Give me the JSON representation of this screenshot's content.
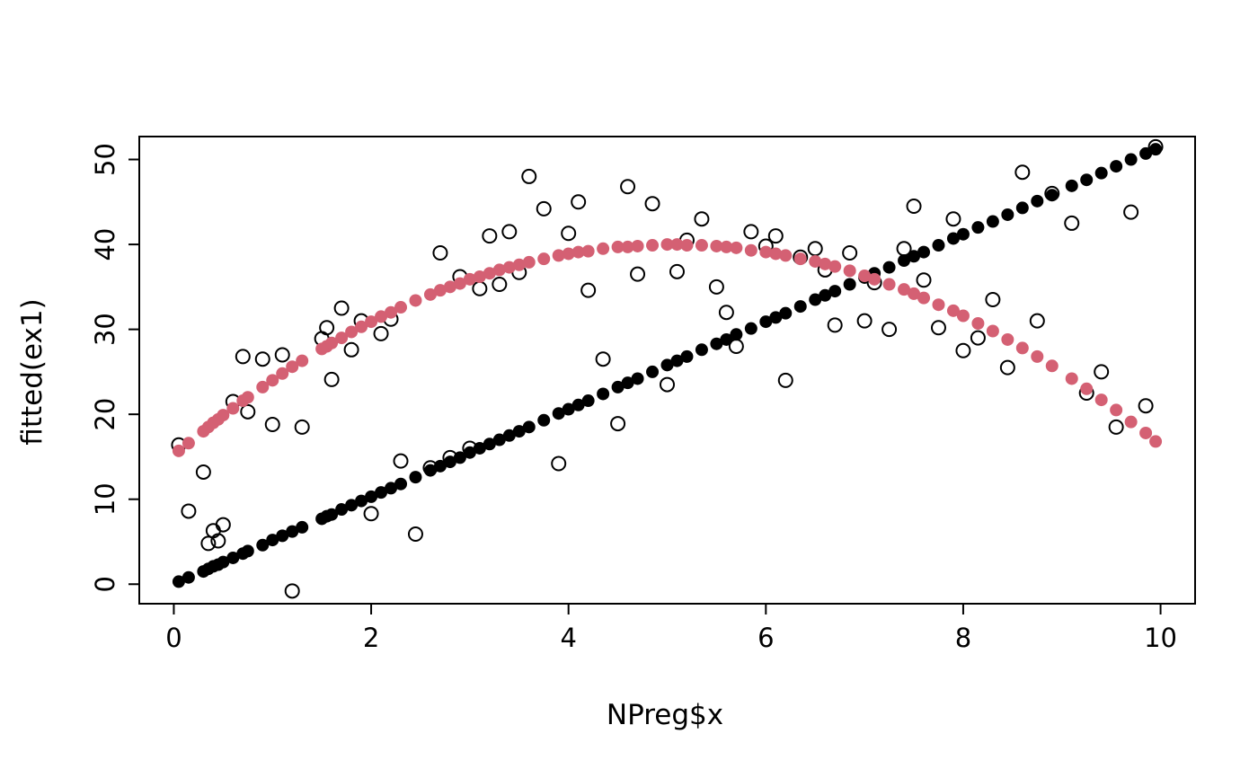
{
  "colors": {
    "background": "#ffffff",
    "foreground": "#000000",
    "accent_pink": "#d46073"
  },
  "chart_data": {
    "type": "scatter",
    "title": "",
    "xlabel": "NPreg$x",
    "ylabel": "fitted(ex1)",
    "xlim": [
      -0.35,
      10.35
    ],
    "ylim": [
      -2.3,
      52.7
    ],
    "x_ticks": [
      0,
      2,
      4,
      6,
      8,
      10
    ],
    "y_ticks": [
      0,
      10,
      20,
      30,
      40,
      50
    ],
    "grid": false,
    "legend": "none",
    "x": [
      0.05,
      0.15,
      0.3,
      0.35,
      0.4,
      0.45,
      0.5,
      0.6,
      0.7,
      0.75,
      0.9,
      1.0,
      1.1,
      1.2,
      1.3,
      1.5,
      1.55,
      1.6,
      1.7,
      1.8,
      1.9,
      2.0,
      2.1,
      2.2,
      2.3,
      2.45,
      2.6,
      2.7,
      2.8,
      2.9,
      3.0,
      3.1,
      3.2,
      3.3,
      3.4,
      3.5,
      3.6,
      3.75,
      3.9,
      4.0,
      4.1,
      4.2,
      4.35,
      4.5,
      4.6,
      4.7,
      4.85,
      5.0,
      5.1,
      5.2,
      5.35,
      5.5,
      5.6,
      5.7,
      5.85,
      6.0,
      6.1,
      6.2,
      6.35,
      6.5,
      6.6,
      6.7,
      6.85,
      7.0,
      7.1,
      7.25,
      7.4,
      7.5,
      7.6,
      7.75,
      7.9,
      8.0,
      8.15,
      8.3,
      8.45,
      8.6,
      8.75,
      8.9,
      9.1,
      9.25,
      9.4,
      9.55,
      9.7,
      9.85,
      9.95
    ],
    "series": [
      {
        "name": "observed",
        "marker": "open-circle",
        "color": "#000000",
        "values": [
          16.4,
          8.6,
          13.2,
          4.8,
          6.3,
          5.1,
          7.0,
          21.5,
          26.8,
          20.3,
          26.5,
          18.8,
          27.0,
          -0.8,
          18.5,
          28.9,
          30.2,
          24.1,
          32.5,
          27.6,
          31.0,
          8.3,
          29.5,
          31.2,
          14.5,
          5.9,
          13.7,
          39.0,
          14.9,
          36.2,
          16.0,
          34.8,
          41.0,
          35.3,
          41.5,
          36.7,
          48.0,
          44.2,
          14.2,
          41.3,
          45.0,
          34.6,
          26.5,
          18.9,
          46.8,
          36.5,
          44.8,
          23.5,
          36.8,
          40.5,
          43.0,
          35.0,
          32.0,
          28.0,
          41.5,
          39.8,
          41.0,
          24.0,
          38.5,
          39.5,
          37.0,
          30.5,
          39.0,
          31.0,
          35.5,
          30.0,
          39.5,
          44.5,
          35.8,
          30.2,
          43.0,
          27.5,
          29.0,
          33.5,
          25.5,
          48.5,
          31.0,
          46.0,
          42.5,
          22.5,
          25.0,
          18.5,
          43.8,
          21.0,
          51.5
        ]
      },
      {
        "name": "fitted-linear-ex1",
        "marker": "filled-circle",
        "color": "#000000",
        "values": [
          0.3,
          0.8,
          1.5,
          1.8,
          2.1,
          2.3,
          2.6,
          3.1,
          3.6,
          3.9,
          4.6,
          5.2,
          5.7,
          6.2,
          6.7,
          7.7,
          8.0,
          8.2,
          8.8,
          9.3,
          9.8,
          10.3,
          10.8,
          11.3,
          11.8,
          12.6,
          13.4,
          13.9,
          14.4,
          14.9,
          15.5,
          16.0,
          16.5,
          17.0,
          17.5,
          18.0,
          18.5,
          19.3,
          20.1,
          20.6,
          21.1,
          21.6,
          22.4,
          23.2,
          23.7,
          24.2,
          25.0,
          25.8,
          26.3,
          26.8,
          27.6,
          28.3,
          28.8,
          29.4,
          30.1,
          30.9,
          31.4,
          31.9,
          32.7,
          33.5,
          34.0,
          34.5,
          35.3,
          36.1,
          36.6,
          37.3,
          38.1,
          38.6,
          39.1,
          39.9,
          40.7,
          41.2,
          42.0,
          42.7,
          43.5,
          44.3,
          45.1,
          45.8,
          46.9,
          47.6,
          48.4,
          49.2,
          50.0,
          50.7,
          51.2
        ]
      },
      {
        "name": "fitted-quadratic-ex2",
        "marker": "filled-circle",
        "color": "#d46073",
        "values": [
          15.7,
          16.6,
          18.0,
          18.5,
          19.0,
          19.4,
          19.9,
          20.7,
          21.6,
          22.0,
          23.2,
          24.0,
          24.8,
          25.6,
          26.3,
          27.7,
          28.0,
          28.4,
          29.0,
          29.7,
          30.3,
          30.9,
          31.5,
          32.0,
          32.6,
          33.4,
          34.1,
          34.6,
          35.0,
          35.4,
          35.9,
          36.2,
          36.6,
          37.0,
          37.3,
          37.6,
          37.9,
          38.3,
          38.7,
          38.9,
          39.1,
          39.2,
          39.5,
          39.7,
          39.7,
          39.8,
          39.9,
          40.0,
          40.0,
          39.9,
          39.9,
          39.8,
          39.7,
          39.6,
          39.3,
          39.1,
          38.9,
          38.7,
          38.3,
          38.0,
          37.7,
          37.4,
          36.9,
          36.3,
          35.9,
          35.3,
          34.7,
          34.2,
          33.7,
          32.9,
          32.2,
          31.6,
          30.7,
          29.8,
          28.8,
          27.8,
          26.8,
          25.7,
          24.2,
          23.0,
          21.7,
          20.5,
          19.1,
          17.8,
          16.8
        ]
      }
    ]
  }
}
